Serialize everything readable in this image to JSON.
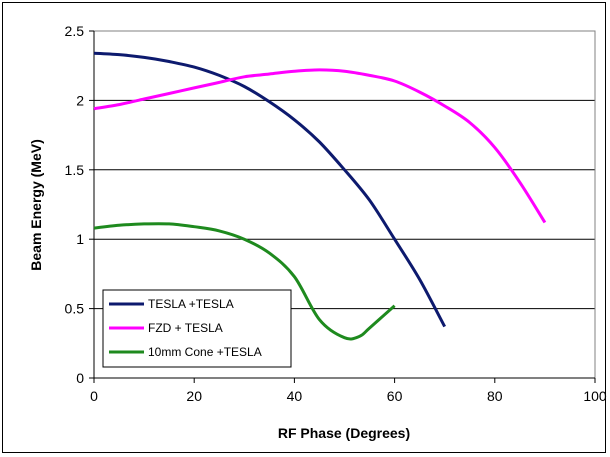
{
  "chart_data": {
    "type": "line",
    "title": "",
    "xlabel": "RF Phase (Degrees)",
    "ylabel": "Beam Energy (MeV)",
    "xlim": [
      0,
      100
    ],
    "ylim": [
      0,
      2.5
    ],
    "xticks": [
      "0",
      "20",
      "40",
      "60",
      "80",
      "100"
    ],
    "yticks": [
      "0",
      "0.5",
      "1",
      "1.5",
      "2",
      "2.5"
    ],
    "grid": "horizontal",
    "legend_position": "bottom-left",
    "series": [
      {
        "name": "TESLA +TESLA",
        "color": "#0d1a6e",
        "x": [
          0,
          5,
          10,
          15,
          20,
          25,
          30,
          35,
          40,
          45,
          50,
          55,
          60,
          65,
          70
        ],
        "y": [
          2.34,
          2.33,
          2.31,
          2.28,
          2.24,
          2.18,
          2.1,
          1.99,
          1.86,
          1.7,
          1.5,
          1.28,
          1.0,
          0.71,
          0.37
        ]
      },
      {
        "name": "FZD + TESLA",
        "color": "#ff00ff",
        "x": [
          0,
          5,
          10,
          15,
          20,
          25,
          30,
          35,
          40,
          45,
          50,
          55,
          60,
          65,
          70,
          75,
          80,
          85,
          90
        ],
        "y": [
          1.94,
          1.97,
          2.01,
          2.05,
          2.09,
          2.13,
          2.17,
          2.19,
          2.21,
          2.22,
          2.21,
          2.18,
          2.14,
          2.06,
          1.96,
          1.84,
          1.66,
          1.41,
          1.12
        ]
      },
      {
        "name": "10mm Cone +TESLA",
        "color": "#1e8a1e",
        "x": [
          0,
          5,
          10,
          15,
          20,
          25,
          30,
          35,
          40,
          45,
          50,
          53,
          55,
          60
        ],
        "y": [
          1.08,
          1.1,
          1.11,
          1.11,
          1.09,
          1.06,
          1.0,
          0.9,
          0.73,
          0.42,
          0.29,
          0.3,
          0.36,
          0.52
        ]
      }
    ]
  }
}
